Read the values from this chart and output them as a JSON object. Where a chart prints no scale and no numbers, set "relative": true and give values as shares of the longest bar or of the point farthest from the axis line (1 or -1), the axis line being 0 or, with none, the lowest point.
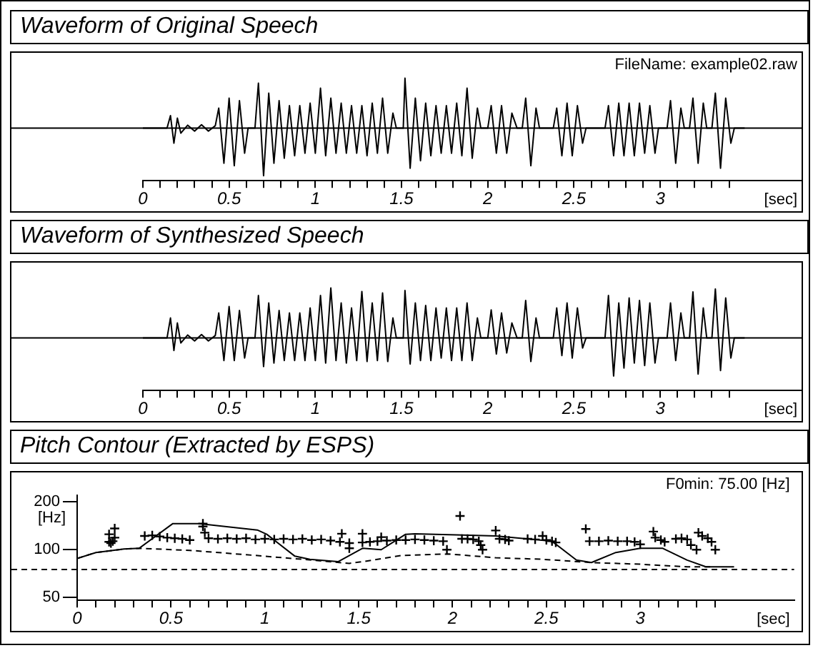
{
  "chart_data": [
    {
      "type": "line",
      "title": "Waveform of Original Speech",
      "xlabel": "[sec]",
      "relative": true,
      "annotations": [
        "FileName: example02.raw"
      ],
      "xlim": [
        0,
        3.82
      ],
      "xticks": [
        0,
        {
          "value": 0.1,
          "label": null
        },
        {
          "value": 0.2,
          "label": null
        },
        {
          "value": 0.3,
          "label": null
        },
        {
          "value": 0.4,
          "label": null
        },
        0.5,
        {
          "value": 0.6,
          "label": null
        },
        {
          "value": 0.7,
          "label": null
        },
        {
          "value": 0.8,
          "label": null
        },
        {
          "value": 0.9,
          "label": null
        },
        1,
        {
          "value": 1.1,
          "label": null
        },
        {
          "value": 1.2,
          "label": null
        },
        {
          "value": 1.3,
          "label": null
        },
        {
          "value": 1.4,
          "label": null
        },
        1.5,
        {
          "value": 1.6,
          "label": null
        },
        {
          "value": 1.7,
          "label": null
        },
        {
          "value": 1.8,
          "label": null
        },
        {
          "value": 1.9,
          "label": null
        },
        2,
        {
          "value": 2.1,
          "label": null
        },
        {
          "value": 2.2,
          "label": null
        },
        {
          "value": 2.3,
          "label": null
        },
        {
          "value": 2.4,
          "label": null
        },
        2.5,
        {
          "value": 2.6,
          "label": null
        },
        {
          "value": 2.7,
          "label": null
        },
        {
          "value": 2.8,
          "label": null
        },
        {
          "value": 2.9,
          "label": null
        },
        3,
        {
          "value": 3.1,
          "label": null
        },
        {
          "value": 3.2,
          "label": null
        },
        {
          "value": 3.3,
          "label": null
        },
        {
          "value": 3.4,
          "label": null
        }
      ],
      "series": [
        {
          "color": "#000000",
          "x": [
            0,
            0.14,
            0.16,
            0.18,
            0.2,
            0.22,
            0.26,
            0.3,
            0.34,
            0.38,
            0.42,
            0.44,
            0.47,
            0.5,
            0.53,
            0.56,
            0.59,
            0.61,
            0.65,
            0.67,
            0.7,
            0.73,
            0.76,
            0.79,
            0.82,
            0.85,
            0.88,
            0.91,
            0.94,
            0.97,
            1.0,
            1.03,
            1.06,
            1.09,
            1.12,
            1.15,
            1.18,
            1.21,
            1.24,
            1.27,
            1.3,
            1.33,
            1.36,
            1.39,
            1.42,
            1.45,
            1.47,
            1.51,
            1.52,
            1.55,
            1.58,
            1.61,
            1.64,
            1.67,
            1.7,
            1.73,
            1.76,
            1.79,
            1.82,
            1.85,
            1.88,
            1.91,
            1.94,
            1.96,
            2.0,
            2.02,
            2.05,
            2.08,
            2.11,
            2.14,
            2.17,
            2.2,
            2.22,
            2.25,
            2.28,
            2.3,
            2.38,
            2.4,
            2.43,
            2.46,
            2.49,
            2.52,
            2.55,
            2.57,
            2.68,
            2.7,
            2.73,
            2.76,
            2.79,
            2.82,
            2.85,
            2.88,
            2.91,
            2.94,
            2.97,
            2.99,
            3.04,
            3.06,
            3.09,
            3.12,
            3.14,
            3.17,
            3.19,
            3.22,
            3.25,
            3.27,
            3.3,
            3.32,
            3.35,
            3.38,
            3.41,
            3.43,
            3.49
          ],
          "values": [
            0,
            0,
            0.25,
            -0.3,
            0.2,
            -0.1,
            0.06,
            -0.06,
            0.07,
            -0.06,
            0.05,
            0.4,
            -0.7,
            0.6,
            -0.75,
            0.55,
            -0.5,
            0,
            0,
            0.9,
            -0.95,
            0.7,
            -0.7,
            0.55,
            -0.6,
            0.45,
            -0.55,
            0.45,
            -0.5,
            0.5,
            -0.5,
            0.8,
            -0.55,
            0.6,
            -0.5,
            0.5,
            -0.5,
            0.45,
            -0.5,
            0.45,
            -0.55,
            0.5,
            -0.5,
            0.6,
            -0.5,
            0.3,
            0,
            0,
            1,
            -0.8,
            0.6,
            -0.65,
            0.5,
            -0.55,
            0.45,
            -0.5,
            0.45,
            -0.5,
            0.5,
            -0.55,
            0.8,
            -0.6,
            0.4,
            0,
            0,
            0.45,
            -0.5,
            0.45,
            -0.5,
            0.3,
            0,
            0,
            0.6,
            -0.75,
            0.4,
            0,
            0,
            0.4,
            -0.55,
            0.5,
            -0.55,
            0.45,
            -0.3,
            0,
            0,
            0.45,
            -0.55,
            0.5,
            -0.55,
            0.5,
            -0.55,
            0.5,
            -0.5,
            0.45,
            -0.5,
            0,
            0,
            0.55,
            -0.7,
            0.4,
            0,
            0,
            0.6,
            -0.7,
            0.5,
            0,
            0,
            0.7,
            -0.8,
            0.6,
            -0.3,
            0,
            0
          ]
        }
      ]
    },
    {
      "type": "line",
      "title": "Waveform of Synthesized Speech",
      "xlabel": "[sec]",
      "relative": true,
      "xlim": [
        0,
        3.82
      ],
      "xticks": [
        0,
        {
          "value": 0.1,
          "label": null
        },
        {
          "value": 0.2,
          "label": null
        },
        {
          "value": 0.3,
          "label": null
        },
        {
          "value": 0.4,
          "label": null
        },
        0.5,
        {
          "value": 0.6,
          "label": null
        },
        {
          "value": 0.7,
          "label": null
        },
        {
          "value": 0.8,
          "label": null
        },
        {
          "value": 0.9,
          "label": null
        },
        1,
        {
          "value": 1.1,
          "label": null
        },
        {
          "value": 1.2,
          "label": null
        },
        {
          "value": 1.3,
          "label": null
        },
        {
          "value": 1.4,
          "label": null
        },
        1.5,
        {
          "value": 1.6,
          "label": null
        },
        {
          "value": 1.7,
          "label": null
        },
        {
          "value": 1.8,
          "label": null
        },
        {
          "value": 1.9,
          "label": null
        },
        2,
        {
          "value": 2.1,
          "label": null
        },
        {
          "value": 2.2,
          "label": null
        },
        {
          "value": 2.3,
          "label": null
        },
        {
          "value": 2.4,
          "label": null
        },
        2.5,
        {
          "value": 2.6,
          "label": null
        },
        {
          "value": 2.7,
          "label": null
        },
        {
          "value": 2.8,
          "label": null
        },
        {
          "value": 2.9,
          "label": null
        },
        3,
        {
          "value": 3.1,
          "label": null
        },
        {
          "value": 3.2,
          "label": null
        },
        {
          "value": 3.3,
          "label": null
        },
        {
          "value": 3.4,
          "label": null
        }
      ],
      "series": [
        {
          "color": "#000000",
          "x": [
            0,
            0.14,
            0.16,
            0.18,
            0.2,
            0.22,
            0.26,
            0.3,
            0.34,
            0.38,
            0.42,
            0.44,
            0.47,
            0.5,
            0.53,
            0.56,
            0.59,
            0.61,
            0.65,
            0.67,
            0.7,
            0.73,
            0.76,
            0.79,
            0.82,
            0.85,
            0.88,
            0.91,
            0.94,
            0.97,
            1.0,
            1.03,
            1.06,
            1.09,
            1.12,
            1.15,
            1.18,
            1.21,
            1.24,
            1.27,
            1.3,
            1.33,
            1.36,
            1.39,
            1.42,
            1.45,
            1.47,
            1.51,
            1.52,
            1.55,
            1.58,
            1.61,
            1.64,
            1.67,
            1.7,
            1.73,
            1.76,
            1.79,
            1.82,
            1.85,
            1.88,
            1.91,
            1.94,
            1.96,
            2.0,
            2.02,
            2.05,
            2.08,
            2.11,
            2.14,
            2.17,
            2.2,
            2.22,
            2.25,
            2.28,
            2.3,
            2.38,
            2.4,
            2.43,
            2.46,
            2.49,
            2.52,
            2.55,
            2.57,
            2.68,
            2.7,
            2.73,
            2.76,
            2.79,
            2.82,
            2.85,
            2.88,
            2.91,
            2.94,
            2.97,
            2.99,
            3.04,
            3.06,
            3.09,
            3.12,
            3.14,
            3.17,
            3.19,
            3.22,
            3.25,
            3.27,
            3.3,
            3.32,
            3.35,
            3.38,
            3.41,
            3.43,
            3.49
          ],
          "values": [
            0,
            0,
            0.4,
            -0.25,
            0.3,
            -0.1,
            0.06,
            -0.06,
            0.07,
            -0.06,
            0.05,
            0.5,
            -0.45,
            0.63,
            -0.45,
            0.55,
            -0.4,
            0,
            0,
            0.85,
            -0.57,
            0.7,
            -0.5,
            0.55,
            -0.45,
            0.5,
            -0.45,
            0.5,
            -0.45,
            0.6,
            -0.45,
            0.85,
            -0.5,
            1,
            -0.45,
            0.7,
            -0.5,
            0.6,
            -0.45,
            0.93,
            -0.47,
            0.7,
            -0.45,
            0.9,
            -0.47,
            0.4,
            0,
            0,
            0.95,
            -0.52,
            0.7,
            -0.45,
            0.65,
            -0.45,
            0.6,
            -0.4,
            0.6,
            -0.45,
            0.6,
            -0.45,
            0.7,
            -0.45,
            0.4,
            0,
            0,
            0.56,
            -0.32,
            0.5,
            -0.3,
            0.3,
            0,
            0,
            0.75,
            -0.47,
            0.4,
            0,
            0,
            0.6,
            -0.35,
            0.7,
            -0.4,
            0.6,
            -0.2,
            0,
            0,
            0.85,
            -0.76,
            0.7,
            -0.6,
            0.8,
            -0.5,
            0.75,
            -0.55,
            0.7,
            -0.5,
            0,
            0,
            0.7,
            -0.45,
            0.5,
            0,
            0,
            0.92,
            -0.72,
            0.6,
            0,
            0,
            0.98,
            -0.65,
            0.8,
            -0.4,
            0,
            0
          ]
        }
      ]
    },
    {
      "type": "line",
      "title": "Pitch Contour (Extracted by ESPS)",
      "xlabel": "[sec]",
      "ylabel": "[Hz]",
      "log": "y",
      "xlim": [
        0,
        3.82
      ],
      "ylim": [
        48,
        220
      ],
      "yticks": [
        50,
        100,
        200
      ],
      "xticks": [
        0,
        {
          "value": 0.1,
          "label": null
        },
        {
          "value": 0.2,
          "label": null
        },
        {
          "value": 0.3,
          "label": null
        },
        {
          "value": 0.4,
          "label": null
        },
        0.5,
        {
          "value": 0.6,
          "label": null
        },
        {
          "value": 0.7,
          "label": null
        },
        {
          "value": 0.8,
          "label": null
        },
        {
          "value": 0.9,
          "label": null
        },
        1,
        {
          "value": 1.1,
          "label": null
        },
        {
          "value": 1.2,
          "label": null
        },
        {
          "value": 1.3,
          "label": null
        },
        {
          "value": 1.4,
          "label": null
        },
        1.5,
        {
          "value": 1.6,
          "label": null
        },
        {
          "value": 1.7,
          "label": null
        },
        {
          "value": 1.8,
          "label": null
        },
        {
          "value": 1.9,
          "label": null
        },
        2,
        {
          "value": 2.1,
          "label": null
        },
        {
          "value": 2.2,
          "label": null
        },
        {
          "value": 2.3,
          "label": null
        },
        {
          "value": 2.4,
          "label": null
        },
        2.5,
        {
          "value": 2.6,
          "label": null
        },
        {
          "value": 2.7,
          "label": null
        },
        {
          "value": 2.8,
          "label": null
        },
        {
          "value": 2.9,
          "label": null
        },
        3,
        {
          "value": 3.1,
          "label": null
        },
        {
          "value": 3.2,
          "label": null
        },
        {
          "value": 3.3,
          "label": null
        },
        {
          "value": 3.4,
          "label": null
        }
      ],
      "ref_lines": [
        {
          "axis": "y",
          "value": 75,
          "label": "F0min: 75.00 [Hz]",
          "line_style": "dashed",
          "color": "#000000"
        }
      ],
      "series": [
        {
          "color": "#000000",
          "x": [
            0,
            0.1,
            0.25,
            0.33,
            0.51,
            0.65,
            0.96,
            1.01,
            1.16,
            1.24,
            1.39,
            1.52,
            1.62,
            1.75,
            1.8,
            2.02,
            2.23,
            2.53,
            2.66,
            2.74,
            2.87,
            3.0,
            3.12,
            3.25,
            3.35,
            3.5
          ],
          "values": [
            88,
            96,
            101,
            102,
            146,
            146,
            133,
            125,
            91,
            87,
            84,
            102,
            100,
            125,
            126,
            124,
            122,
            113,
            86,
            83,
            96,
            102,
            102,
            86,
            78,
            78
          ]
        },
        {
          "line_style": "dashed",
          "color": "#000000",
          "x": [
            0,
            0.1,
            0.25,
            0.33,
            0.6,
            0.9,
            1.2,
            1.45,
            1.52,
            1.73,
            1.98,
            2.23,
            2.48,
            2.74,
            3.0,
            3.25,
            3.38
          ],
          "values": [
            88,
            96,
            101,
            102,
            99,
            93,
            87,
            82,
            84,
            92,
            94,
            89,
            87,
            83,
            81,
            78,
            78
          ]
        },
        {
          "type": "scatter",
          "marker": "cross",
          "color": "#000000",
          "x": [
            0.17,
            0.18,
            0.19,
            0.17,
            0.2,
            0.2,
            0.36,
            0.4,
            0.44,
            0.48,
            0.52,
            0.56,
            0.6,
            0.67,
            0.67,
            0.68,
            0.7,
            0.75,
            0.8,
            0.85,
            0.9,
            0.95,
            1.0,
            1.05,
            1.1,
            1.15,
            1.2,
            1.25,
            1.3,
            1.35,
            1.4,
            1.45,
            1.41,
            1.45,
            1.52,
            1.52,
            1.56,
            1.6,
            1.62,
            1.65,
            1.7,
            1.75,
            1.8,
            1.85,
            1.9,
            1.95,
            1.97,
            2.04,
            2.05,
            2.08,
            2.11,
            2.14,
            2.15,
            2.16,
            2.23,
            2.25,
            2.28,
            2.3,
            2.4,
            2.44,
            2.48,
            2.5,
            2.53,
            2.55,
            2.71,
            2.73,
            2.78,
            2.83,
            2.88,
            2.93,
            2.97,
            3.0,
            3.07,
            3.08,
            3.11,
            3.13,
            3.19,
            3.22,
            3.25,
            3.27,
            3.3,
            3.31,
            3.33,
            3.36,
            3.38,
            3.4
          ],
          "values": [
            112,
            110,
            113,
            125,
            136,
            119,
            122,
            123,
            121,
            119,
            118,
            117,
            115,
            146,
            140,
            128,
            118,
            117,
            118,
            117,
            118,
            116,
            117,
            116,
            117,
            116,
            117,
            115,
            116,
            114,
            112,
            110,
            126,
            102,
            126,
            111,
            112,
            113,
            120,
            114,
            115,
            115,
            116,
            115,
            114,
            113,
            100,
            163,
            117,
            117,
            116,
            113,
            107,
            100,
            132,
            117,
            116,
            114,
            117,
            116,
            122,
            115,
            113,
            111,
            135,
            113,
            113,
            114,
            113,
            113,
            112,
            108,
            130,
            119,
            115,
            112,
            117,
            118,
            116,
            107,
            100,
            128,
            122,
            118,
            112,
            100
          ]
        }
      ]
    }
  ]
}
